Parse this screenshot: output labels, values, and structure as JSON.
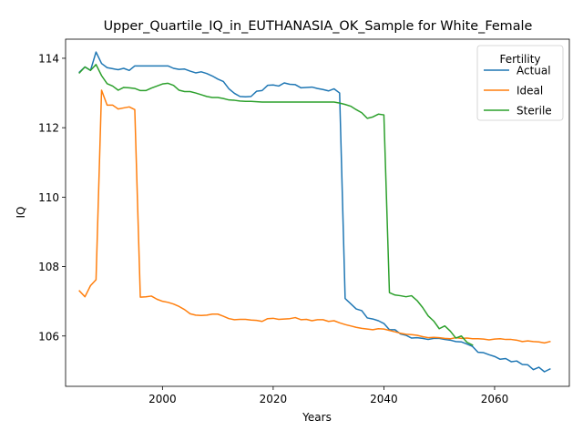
{
  "chart_data": {
    "type": "line",
    "title": "Upper_Quartile_IQ_in_EUTHANASIA_OK_Sample for White_Female",
    "xlabel": "Years",
    "ylabel": "IQ",
    "xlim": [
      2083.5,
      2073.5
    ],
    "ylim": [
      104.55,
      114.55
    ],
    "xlim_data": [
      1982.5,
      2073.5
    ],
    "xticks": [
      2000,
      2020,
      2040,
      2060
    ],
    "yticks": [
      106,
      108,
      110,
      112,
      114
    ],
    "grid": false,
    "legend": {
      "title": "Fertility",
      "placement": "top-right"
    },
    "x": [
      1985,
      1986,
      1987,
      1988,
      1989,
      1990,
      1991,
      1992,
      1993,
      1994,
      1995,
      1996,
      1997,
      1998,
      1999,
      2000,
      2001,
      2002,
      2003,
      2004,
      2005,
      2006,
      2007,
      2008,
      2009,
      2010,
      2011,
      2012,
      2013,
      2014,
      2015,
      2016,
      2017,
      2018,
      2019,
      2020,
      2021,
      2022,
      2023,
      2024,
      2025,
      2026,
      2027,
      2028,
      2029,
      2030,
      2031,
      2032,
      2033,
      2034,
      2035,
      2036,
      2037,
      2038,
      2039,
      2040,
      2041,
      2042,
      2043,
      2044,
      2045,
      2046,
      2047,
      2048,
      2049,
      2050,
      2051,
      2052,
      2053,
      2054,
      2055,
      2056,
      2057,
      2058,
      2059,
      2060,
      2061,
      2062,
      2063,
      2064,
      2065,
      2066,
      2067,
      2068,
      2069,
      2070
    ],
    "series": [
      {
        "name": "Actual",
        "color": "#1f77b4",
        "values": [
          113.6,
          113.75,
          113.65,
          114.18,
          113.85,
          113.73,
          113.7,
          113.67,
          113.71,
          113.65,
          113.78,
          113.78,
          113.78,
          113.78,
          113.78,
          113.78,
          113.78,
          113.71,
          113.68,
          113.69,
          113.63,
          113.58,
          113.61,
          113.56,
          113.49,
          113.4,
          113.33,
          113.12,
          112.99,
          112.9,
          112.89,
          112.9,
          113.05,
          113.07,
          113.22,
          113.23,
          113.2,
          113.29,
          113.25,
          113.24,
          113.15,
          113.16,
          113.17,
          113.13,
          113.1,
          113.06,
          113.12,
          113.0,
          107.08,
          106.93,
          106.78,
          106.73,
          106.52,
          106.49,
          106.44,
          106.36,
          106.18,
          106.18,
          106.06,
          106.02,
          105.94,
          105.95,
          105.93,
          105.9,
          105.93,
          105.93,
          105.9,
          105.88,
          105.84,
          105.83,
          105.77,
          105.7,
          105.53,
          105.52,
          105.46,
          105.41,
          105.33,
          105.35,
          105.26,
          105.28,
          105.18,
          105.17,
          105.03,
          105.1,
          104.97,
          105.05
        ]
      },
      {
        "name": "Ideal",
        "color": "#ff7f0e",
        "values": [
          107.3,
          107.13,
          107.45,
          107.62,
          113.08,
          112.65,
          112.65,
          112.54,
          112.57,
          112.6,
          112.52,
          107.12,
          107.13,
          107.15,
          107.06,
          107.0,
          106.97,
          106.92,
          106.85,
          106.76,
          106.64,
          106.6,
          106.59,
          106.6,
          106.63,
          106.63,
          106.57,
          106.5,
          106.47,
          106.48,
          106.48,
          106.46,
          106.45,
          106.42,
          106.5,
          106.51,
          106.48,
          106.49,
          106.5,
          106.53,
          106.47,
          106.48,
          106.44,
          106.47,
          106.47,
          106.42,
          106.44,
          106.38,
          106.33,
          106.29,
          106.25,
          106.22,
          106.2,
          106.18,
          106.21,
          106.2,
          106.16,
          106.12,
          106.08,
          106.05,
          106.04,
          106.02,
          105.98,
          105.95,
          105.96,
          105.95,
          105.93,
          105.92,
          105.95,
          105.93,
          105.94,
          105.92,
          105.92,
          105.91,
          105.89,
          105.91,
          105.92,
          105.9,
          105.9,
          105.88,
          105.84,
          105.86,
          105.84,
          105.83,
          105.8,
          105.84
        ]
      },
      {
        "name": "Sterile",
        "color": "#2ca02c",
        "values": [
          113.58,
          113.75,
          113.65,
          113.82,
          113.5,
          113.27,
          113.2,
          113.08,
          113.16,
          113.15,
          113.13,
          113.07,
          113.07,
          113.14,
          113.2,
          113.26,
          113.28,
          113.22,
          113.08,
          113.04,
          113.04,
          113.0,
          112.95,
          112.9,
          112.87,
          112.87,
          112.84,
          112.8,
          112.79,
          112.77,
          112.76,
          112.76,
          112.75,
          112.74,
          112.74,
          112.74,
          112.74,
          112.74,
          112.74,
          112.74,
          112.74,
          112.74,
          112.74,
          112.74,
          112.74,
          112.74,
          112.74,
          112.71,
          112.67,
          112.62,
          112.52,
          112.43,
          112.27,
          112.31,
          112.39,
          112.37,
          107.25,
          107.18,
          107.16,
          107.13,
          107.16,
          107.02,
          106.82,
          106.58,
          106.43,
          106.21,
          106.29,
          106.14,
          105.94,
          106.0,
          105.82,
          105.74,
          null,
          null,
          null,
          null,
          null,
          null,
          null,
          null,
          null,
          null,
          null,
          null,
          null,
          null
        ]
      }
    ]
  }
}
